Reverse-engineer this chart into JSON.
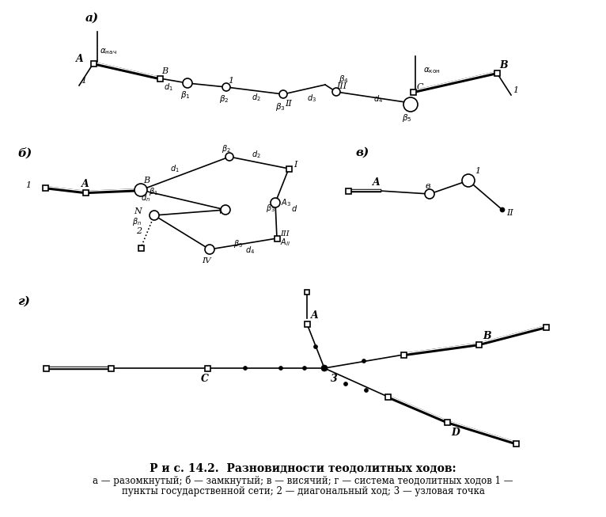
{
  "title": "Р и с. 14.2.  Разновидности теодолитных ходов:",
  "caption_line2": "а — разомкнутый; б — замкнутый; в — висячий; г — система теодолитных ходов 1 —",
  "caption_line3": "пункты государственной сети; 2 — диагональный ход; 3 — узловая точка",
  "bg_color": "#ffffff",
  "line_color": "#000000"
}
